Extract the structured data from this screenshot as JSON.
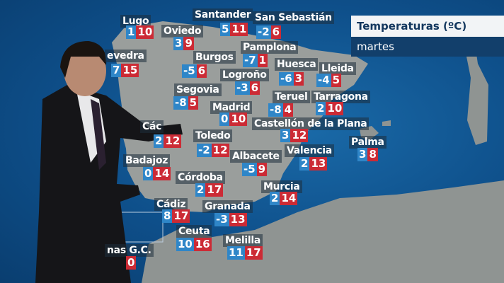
{
  "header": {
    "title": "Temperaturas (ºC)",
    "day": "martes"
  },
  "colors": {
    "min": "#2f86c8",
    "max": "#cc2b35",
    "sea": "#0e4f8a",
    "land": "#9a9e9c"
  },
  "cities": [
    {
      "name": "Lugo",
      "min": "1",
      "max": "10"
    },
    {
      "name": "Oviedo",
      "min": "3",
      "max": "9"
    },
    {
      "name": "Santander",
      "min": "5",
      "max": "11"
    },
    {
      "name": "San Sebastián",
      "min": "-2",
      "max": "6"
    },
    {
      "name": "evedra",
      "min": "7",
      "max": "15"
    },
    {
      "name": "Burgos",
      "min": "-5",
      "max": "6"
    },
    {
      "name": "Pamplona",
      "min": "-7",
      "max": "1"
    },
    {
      "name": "Huesca",
      "min": "-6",
      "max": "3"
    },
    {
      "name": "Lleida",
      "min": "-4",
      "max": "5"
    },
    {
      "name": "Logroño",
      "min": "-3",
      "max": "6"
    },
    {
      "name": "Segovia",
      "min": "-8",
      "max": "5"
    },
    {
      "name": "Teruel",
      "min": "-8",
      "max": "4"
    },
    {
      "name": "Tarragona",
      "min": "2",
      "max": "10"
    },
    {
      "name": "Madrid",
      "min": "0",
      "max": "10"
    },
    {
      "name": "Castellón de la Plana",
      "min": "3",
      "max": "12"
    },
    {
      "name": "Các",
      "min": "2",
      "max": "12"
    },
    {
      "name": "Toledo",
      "min": "-2",
      "max": "12"
    },
    {
      "name": "Palma",
      "min": "3",
      "max": "8"
    },
    {
      "name": "Badajoz",
      "min": "0",
      "max": "14"
    },
    {
      "name": "Albacete",
      "min": "-5",
      "max": "9"
    },
    {
      "name": "Valencia",
      "min": "2",
      "max": "13"
    },
    {
      "name": "Córdoba",
      "min": "2",
      "max": "17"
    },
    {
      "name": "Murcia",
      "min": "2",
      "max": "14"
    },
    {
      "name": "Cádiz",
      "min": "8",
      "max": "17"
    },
    {
      "name": "Granada",
      "min": "-3",
      "max": "13"
    },
    {
      "name": "Ceuta",
      "min": "10",
      "max": "16"
    },
    {
      "name": "Melilla",
      "min": "11",
      "max": "17"
    },
    {
      "name": "nas G.C.",
      "min": "",
      "max": "0"
    }
  ]
}
